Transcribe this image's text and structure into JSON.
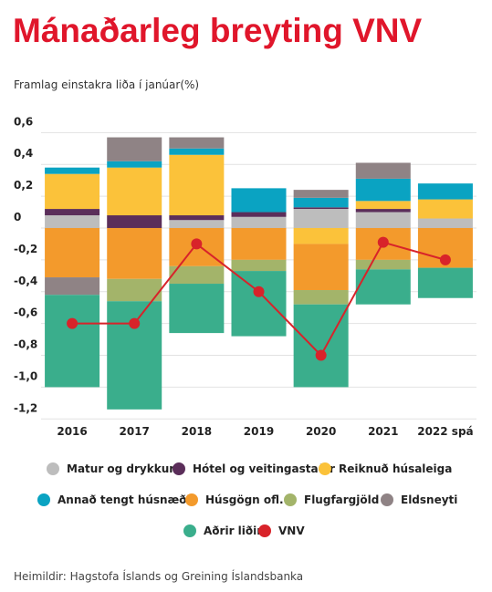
{
  "chart_data": {
    "type": "stacked_bar_line",
    "title": "Mánaðarleg breyting VNV",
    "subtitle": "Framlag einstakra liða í janúar(%)",
    "source": "Heimildir: Hagstofa Íslands og Greining Íslandsbanka",
    "categories": [
      "2016",
      "2017",
      "2018",
      "2019",
      "2020",
      "2021",
      "2022 spá"
    ],
    "ylim": [
      -1.2,
      0.65
    ],
    "yticks": [
      {
        "value": 0.6,
        "label": "0,6"
      },
      {
        "value": 0.4,
        "label": "0,4"
      },
      {
        "value": 0.2,
        "label": "0,2"
      },
      0,
      {
        "value": -0.2,
        "label": "-0,2"
      },
      {
        "value": -0.4,
        "label": "-0,4"
      },
      {
        "value": -0.6,
        "label": "-0,6"
      },
      {
        "value": -0.8,
        "label": "-0,8"
      },
      {
        "value": -1.0,
        "label": "-1,0"
      },
      {
        "value": -1.2,
        "label": "-1,2"
      }
    ],
    "series": [
      {
        "name": "Matur og drykkur",
        "color": "#bdbdbd",
        "values": [
          0.08,
          0,
          0.05,
          0.07,
          0.12,
          0.1,
          0.06
        ]
      },
      {
        "name": "Hótel og veitingastaðir",
        "color": "#5b2e5a",
        "values": [
          0.04,
          0.08,
          0.03,
          0.03,
          0.01,
          0.02,
          0
        ]
      },
      {
        "name": "Reiknuð húsaleiga",
        "color": "#fbc23a",
        "values": [
          0.22,
          0.3,
          0.38,
          0,
          -0.1,
          0.05,
          0.12
        ]
      },
      {
        "name": "Annað tengt húsnæði",
        "color": "#0aa3c2",
        "values": [
          0.04,
          0.04,
          0.04,
          0.15,
          0.06,
          0.14,
          0.1
        ]
      },
      {
        "name": "Húsgögn ofl.",
        "color": "#f39a2c",
        "values": [
          -0.31,
          -0.32,
          -0.24,
          -0.2,
          -0.29,
          -0.2,
          -0.25
        ]
      },
      {
        "name": "Flugfargjöld",
        "color": "#a3b46a",
        "values": [
          0,
          -0.14,
          -0.11,
          -0.07,
          -0.09,
          -0.06,
          0
        ]
      },
      {
        "name": "Eldsneyti",
        "color": "#8f8385",
        "values": [
          -0.11,
          0.15,
          0.07,
          0,
          0.05,
          0.1,
          0
        ]
      },
      {
        "name": "Aðrir liðir",
        "color": "#3aae8c",
        "values": [
          -0.58,
          -0.68,
          -0.31,
          -0.41,
          -0.52,
          -0.22,
          -0.19
        ]
      },
      {
        "name": "VNV",
        "color": "#d8232a",
        "type": "line",
        "values": [
          -0.6,
          -0.6,
          -0.1,
          -0.4,
          -0.8,
          -0.09,
          -0.2
        ]
      }
    ]
  }
}
